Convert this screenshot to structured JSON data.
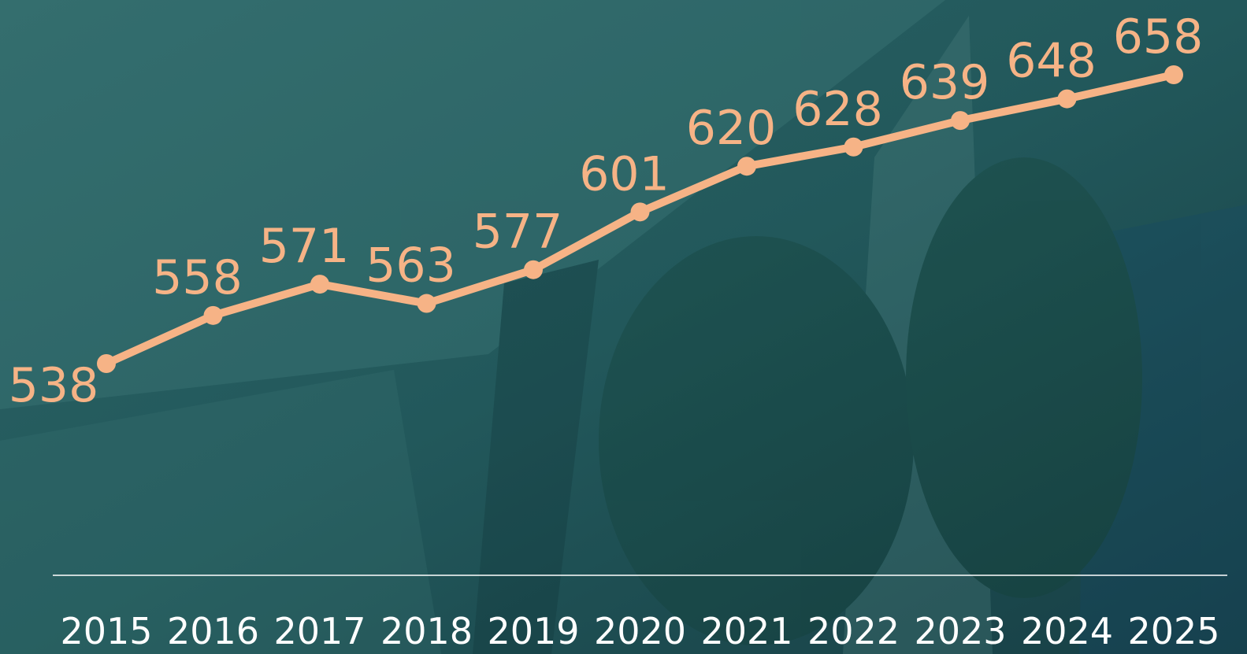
{
  "chart_data": {
    "type": "line",
    "categories": [
      "2015",
      "2016",
      "2017",
      "2018",
      "2019",
      "2020",
      "2021",
      "2022",
      "2023",
      "2024",
      "2025"
    ],
    "values": [
      538,
      558,
      571,
      563,
      577,
      601,
      620,
      628,
      639,
      648,
      658
    ],
    "color": "#f6b386",
    "data_labels": true
  }
}
